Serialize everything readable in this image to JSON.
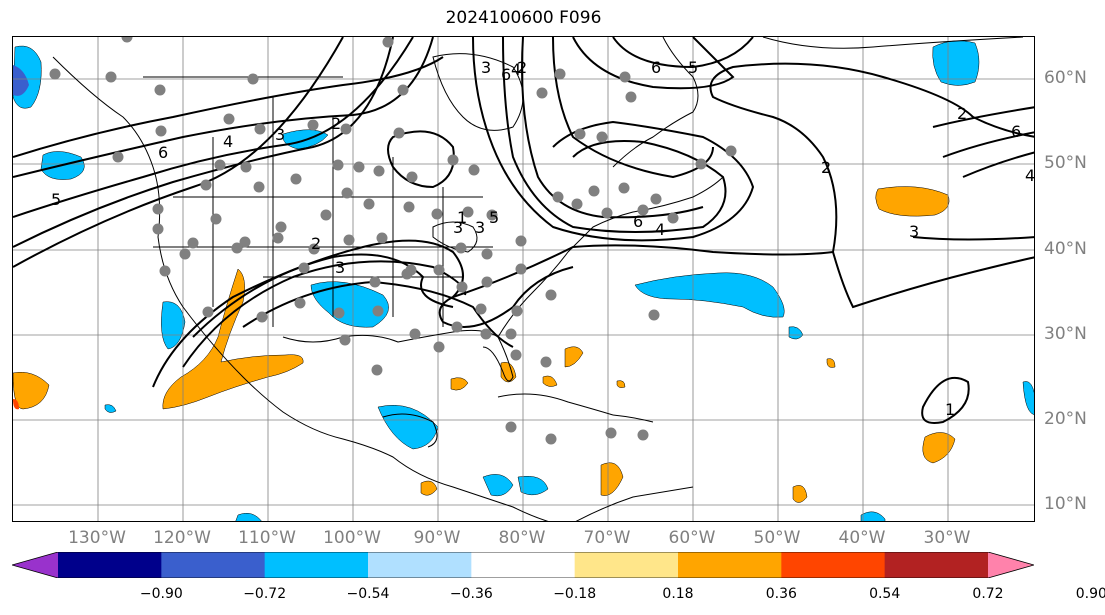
{
  "title": "2024100600 F096",
  "lon_labels": [
    "130°W",
    "120°W",
    "110°W",
    "100°W",
    "90°W",
    "80°W",
    "70°W",
    "60°W",
    "50°W",
    "40°W",
    "30°W"
  ],
  "lat_labels": [
    "60°N",
    "50°N",
    "40°N",
    "30°N",
    "20°N",
    "10°N"
  ],
  "colorbar": {
    "colors": [
      "#9932cc",
      "#00008b",
      "#3a5fcd",
      "#00bfff",
      "#b0e0ff",
      "#ffffff",
      "#ffe68a",
      "#ffa500",
      "#ff4500",
      "#b22222",
      "#ff82ab"
    ],
    "tick_labels": [
      "−0.90",
      "−0.72",
      "−0.54",
      "−0.36",
      "−0.18",
      "0.18",
      "0.36",
      "0.54",
      "0.72",
      "0.90"
    ]
  },
  "contour_labels": [
    "6",
    "4",
    "5",
    "2",
    "3",
    "6",
    "2",
    "5",
    "3",
    "4",
    "6",
    "5",
    "3",
    "6",
    "4",
    "2",
    "6",
    "2",
    "3",
    "4",
    "3",
    "1",
    "3",
    "2",
    "1"
  ],
  "station_count": 90,
  "palette": {
    "land_line": "#000000",
    "grid": "#808080",
    "station": "#808080",
    "contour": "#000000"
  }
}
